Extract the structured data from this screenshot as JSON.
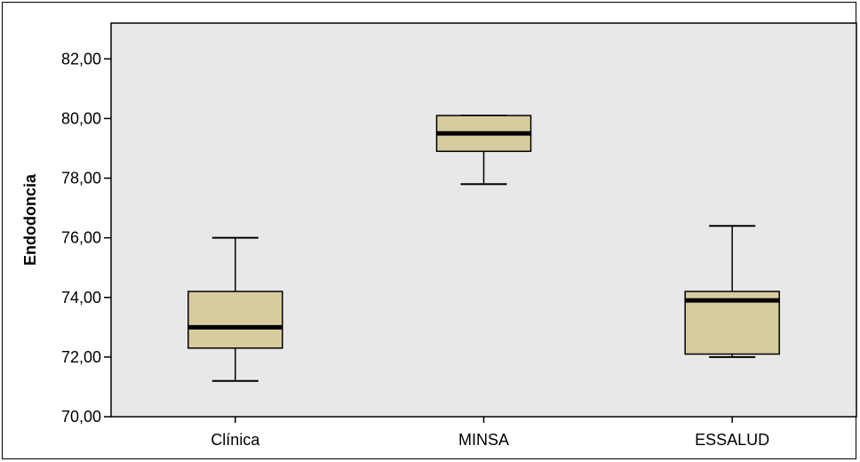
{
  "chart_data": {
    "type": "boxplot",
    "title": "",
    "xlabel": "",
    "ylabel": "Endodoncia",
    "ylim": [
      70,
      83.2
    ],
    "yticks": [
      70,
      72,
      74,
      76,
      78,
      80,
      82
    ],
    "ytick_labels": [
      "70,00",
      "72,00",
      "74,00",
      "76,00",
      "78,00",
      "80,00",
      "82,00"
    ],
    "categories": [
      "Clínica",
      "MINSA",
      "ESSALUD"
    ],
    "boxes": [
      {
        "category": "Clínica",
        "whisker_low": 71.2,
        "q1": 72.3,
        "median": 73.0,
        "q3": 74.2,
        "whisker_high": 76.0
      },
      {
        "category": "MINSA",
        "whisker_low": 77.8,
        "q1": 78.9,
        "median": 79.5,
        "q3": 80.1,
        "whisker_high": 80.1
      },
      {
        "category": "ESSALUD",
        "whisker_low": 72.0,
        "q1": 72.1,
        "median": 73.9,
        "q3": 74.2,
        "whisker_high": 76.4
      }
    ],
    "grid": false,
    "legend": "none",
    "colors": {
      "plot_background": "#e8e8e8",
      "box_fill": "#d6cc9e",
      "median_line": "#000000",
      "outline": "#000000"
    }
  }
}
